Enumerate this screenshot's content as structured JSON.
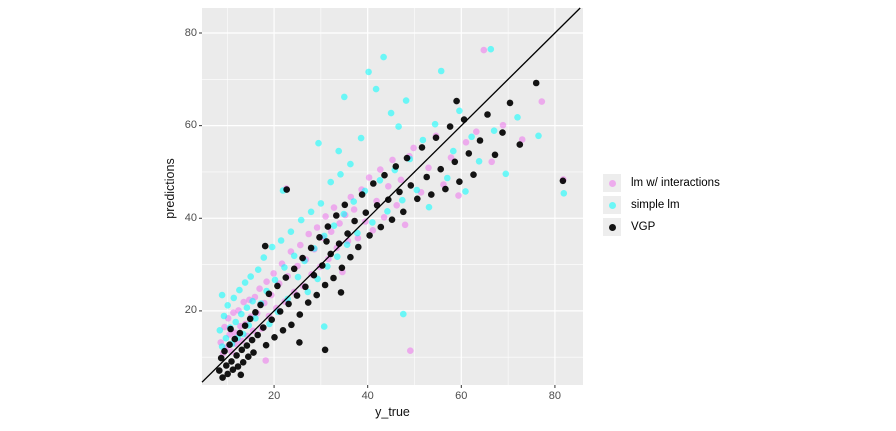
{
  "figure": {
    "background": "#ffffff",
    "panel_bg": "#ebebeb",
    "grid_major_color": "#ffffff",
    "grid_minor_color": "#ffffff",
    "tick_mark_color": "#333333",
    "tick_label_color": "#4d4d4d",
    "axis_title_color": "#111111",
    "legend_key_bg": "#ededed"
  },
  "chart_data": {
    "type": "scatter",
    "title": "",
    "xlabel": "y_true",
    "ylabel": "predictions",
    "xlim": [
      4.6,
      86.0
    ],
    "ylim": [
      4.0,
      85.4
    ],
    "x_ticks": [
      20,
      40,
      60,
      80
    ],
    "y_ticks": [
      20,
      40,
      60,
      80
    ],
    "x_tick_labels": [
      "20",
      "40",
      "60",
      "80"
    ],
    "y_tick_labels": [
      "20",
      "40",
      "60",
      "80"
    ],
    "x_minor_ticks": [
      10,
      30,
      50,
      70
    ],
    "y_minor_ticks": [
      10,
      30,
      50,
      70
    ],
    "grid": true,
    "legend_position": "right",
    "identity_line": {
      "slope": 1,
      "intercept": 0,
      "color": "#000000",
      "width": 1.3
    },
    "series": [
      {
        "name": "lm w/ interactions",
        "color": "rgba(238,130,238,0.62)",
        "points": [
          [
            8.6,
            13.2
          ],
          [
            9.1,
            10.8
          ],
          [
            9.4,
            16.5
          ],
          [
            9.8,
            12.1
          ],
          [
            10.2,
            18.4
          ],
          [
            10.5,
            14.9
          ],
          [
            10.9,
            11.2
          ],
          [
            11.3,
            19.6
          ],
          [
            11.6,
            15.3
          ],
          [
            12.0,
            12.8
          ],
          [
            12.4,
            20.1
          ],
          [
            12.8,
            16.7
          ],
          [
            13.1,
            13.5
          ],
          [
            13.5,
            21.9
          ],
          [
            13.9,
            17.2
          ],
          [
            14.3,
            14.6
          ],
          [
            14.7,
            22.4
          ],
          [
            15.1,
            18.8
          ],
          [
            15.5,
            15.7
          ],
          [
            15.9,
            23.0
          ],
          [
            18.2,
            9.3
          ],
          [
            16.4,
            19.5
          ],
          [
            16.9,
            24.8
          ],
          [
            17.4,
            16.2
          ],
          [
            17.9,
            21.7
          ],
          [
            18.4,
            26.3
          ],
          [
            18.9,
            18.9
          ],
          [
            19.4,
            23.4
          ],
          [
            19.9,
            28.1
          ],
          [
            20.5,
            20.6
          ],
          [
            21.1,
            25.9
          ],
          [
            21.7,
            30.2
          ],
          [
            22.3,
            22.0
          ],
          [
            22.9,
            27.5
          ],
          [
            23.6,
            32.8
          ],
          [
            24.3,
            24.1
          ],
          [
            22.6,
            46.4
          ],
          [
            25.0,
            29.7
          ],
          [
            25.6,
            34.2
          ],
          [
            26.2,
            25.4
          ],
          [
            26.8,
            31.1
          ],
          [
            27.4,
            36.6
          ],
          [
            28.0,
            27.9
          ],
          [
            28.6,
            33.3
          ],
          [
            29.2,
            38.0
          ],
          [
            29.8,
            29.5
          ],
          [
            30.4,
            35.8
          ],
          [
            31.0,
            40.4
          ],
          [
            31.6,
            31.2
          ],
          [
            32.2,
            37.1
          ],
          [
            32.8,
            42.3
          ],
          [
            33.4,
            33.6
          ],
          [
            34.0,
            38.9
          ],
          [
            34.6,
            28.4
          ],
          [
            35.2,
            40.7
          ],
          [
            35.8,
            35.1
          ],
          [
            36.4,
            44.6
          ],
          [
            37.1,
            41.9
          ],
          [
            37.9,
            35.7
          ],
          [
            38.7,
            46.2
          ],
          [
            39.5,
            39.3
          ],
          [
            40.3,
            48.8
          ],
          [
            41.1,
            37.4
          ],
          [
            41.9,
            43.7
          ],
          [
            42.7,
            50.5
          ],
          [
            43.5,
            40.2
          ],
          [
            44.4,
            46.9
          ],
          [
            45.3,
            52.6
          ],
          [
            46.2,
            42.8
          ],
          [
            47.1,
            48.3
          ],
          [
            48.0,
            38.6
          ],
          [
            48.9,
            53.4
          ],
          [
            49.1,
            11.4
          ],
          [
            49.8,
            55.2
          ],
          [
            51.4,
            45.6
          ],
          [
            53.0,
            50.9
          ],
          [
            54.6,
            57.8
          ],
          [
            56.2,
            47.3
          ],
          [
            57.8,
            53.1
          ],
          [
            59.4,
            44.9
          ],
          [
            61.0,
            56.4
          ],
          [
            63.2,
            58.7
          ],
          [
            64.8,
            76.3
          ],
          [
            66.5,
            52.2
          ],
          [
            68.9,
            60.1
          ],
          [
            73.0,
            57.0
          ],
          [
            77.2,
            65.2
          ],
          [
            81.8,
            48.4
          ]
        ]
      },
      {
        "name": "simple lm",
        "color": "rgba(0,255,255,0.55)",
        "points": [
          [
            8.4,
            15.8
          ],
          [
            8.9,
            12.3
          ],
          [
            8.9,
            23.4
          ],
          [
            9.3,
            18.9
          ],
          [
            9.7,
            14.1
          ],
          [
            10.1,
            21.2
          ],
          [
            10.6,
            16.4
          ],
          [
            11.0,
            12.9
          ],
          [
            11.4,
            22.8
          ],
          [
            11.8,
            17.6
          ],
          [
            12.2,
            14.2
          ],
          [
            12.6,
            24.5
          ],
          [
            13.0,
            19.3
          ],
          [
            13.4,
            15.0
          ],
          [
            13.8,
            26.1
          ],
          [
            14.2,
            20.7
          ],
          [
            14.6,
            16.9
          ],
          [
            15.0,
            27.4
          ],
          [
            15.4,
            22.1
          ],
          [
            16.0,
            18.4
          ],
          [
            16.6,
            28.9
          ],
          [
            17.2,
            21.6
          ],
          [
            17.8,
            31.5
          ],
          [
            18.4,
            24.3
          ],
          [
            19.0,
            17.2
          ],
          [
            19.6,
            33.8
          ],
          [
            20.2,
            26.7
          ],
          [
            20.8,
            19.8
          ],
          [
            21.5,
            35.2
          ],
          [
            21.9,
            46.0
          ],
          [
            22.2,
            29.4
          ],
          [
            22.9,
            22.6
          ],
          [
            23.6,
            37.1
          ],
          [
            24.3,
            31.9
          ],
          [
            25.1,
            27.3
          ],
          [
            25.8,
            39.6
          ],
          [
            26.5,
            30.8
          ],
          [
            27.2,
            24.1
          ],
          [
            27.9,
            41.4
          ],
          [
            28.6,
            33.5
          ],
          [
            29.3,
            26.9
          ],
          [
            29.5,
            56.2
          ],
          [
            30.0,
            43.2
          ],
          [
            30.7,
            16.6
          ],
          [
            30.7,
            36.2
          ],
          [
            31.4,
            29.6
          ],
          [
            32.1,
            47.8
          ],
          [
            32.8,
            38.4
          ],
          [
            33.5,
            31.7
          ],
          [
            33.8,
            54.5
          ],
          [
            34.2,
            49.5
          ],
          [
            34.9,
            40.9
          ],
          [
            35.0,
            66.2
          ],
          [
            35.6,
            34.3
          ],
          [
            36.3,
            51.7
          ],
          [
            37.0,
            43.6
          ],
          [
            37.8,
            36.8
          ],
          [
            38.6,
            57.3
          ],
          [
            39.4,
            45.9
          ],
          [
            40.2,
            71.6
          ],
          [
            41.0,
            39.1
          ],
          [
            41.8,
            67.9
          ],
          [
            42.6,
            48.2
          ],
          [
            43.4,
            74.8
          ],
          [
            44.2,
            41.5
          ],
          [
            45.0,
            62.7
          ],
          [
            45.8,
            50.4
          ],
          [
            46.6,
            59.8
          ],
          [
            47.4,
            43.9
          ],
          [
            47.6,
            19.3
          ],
          [
            48.2,
            65.4
          ],
          [
            49.0,
            52.8
          ],
          [
            50.5,
            46.1
          ],
          [
            51.8,
            56.9
          ],
          [
            53.1,
            42.4
          ],
          [
            54.4,
            60.3
          ],
          [
            55.7,
            71.8
          ],
          [
            57.0,
            48.7
          ],
          [
            58.3,
            54.5
          ],
          [
            59.6,
            63.2
          ],
          [
            60.9,
            45.8
          ],
          [
            62.2,
            57.6
          ],
          [
            63.8,
            52.3
          ],
          [
            66.3,
            76.5
          ],
          [
            67.0,
            58.9
          ],
          [
            69.5,
            49.6
          ],
          [
            72.0,
            61.8
          ],
          [
            76.5,
            57.8
          ],
          [
            81.9,
            45.4
          ]
        ]
      },
      {
        "name": "VGP",
        "color": "rgba(0,0,0,0.92)",
        "points": [
          [
            8.3,
            7.1
          ],
          [
            8.7,
            9.8
          ],
          [
            9.0,
            5.6
          ],
          [
            9.4,
            11.3
          ],
          [
            9.8,
            8.2
          ],
          [
            10.1,
            6.4
          ],
          [
            10.5,
            12.7
          ],
          [
            10.7,
            16.1
          ],
          [
            10.9,
            9.1
          ],
          [
            11.2,
            7.3
          ],
          [
            11.6,
            13.9
          ],
          [
            12.0,
            10.4
          ],
          [
            12.3,
            8.0
          ],
          [
            12.7,
            15.2
          ],
          [
            12.9,
            6.2
          ],
          [
            13.1,
            11.6
          ],
          [
            13.4,
            8.9
          ],
          [
            13.8,
            16.8
          ],
          [
            14.2,
            12.5
          ],
          [
            14.5,
            10.1
          ],
          [
            14.9,
            18.3
          ],
          [
            15.3,
            13.7
          ],
          [
            15.6,
            11.0
          ],
          [
            16.0,
            19.7
          ],
          [
            16.5,
            14.8
          ],
          [
            17.1,
            21.3
          ],
          [
            17.7,
            16.4
          ],
          [
            18.1,
            34.0
          ],
          [
            18.3,
            12.6
          ],
          [
            18.9,
            23.7
          ],
          [
            19.5,
            18.1
          ],
          [
            20.1,
            14.3
          ],
          [
            20.7,
            25.4
          ],
          [
            21.3,
            19.9
          ],
          [
            21.9,
            15.8
          ],
          [
            22.5,
            27.2
          ],
          [
            22.7,
            46.2
          ],
          [
            23.1,
            21.5
          ],
          [
            23.7,
            17.0
          ],
          [
            24.3,
            29.1
          ],
          [
            24.9,
            23.3
          ],
          [
            25.4,
            13.2
          ],
          [
            25.5,
            19.2
          ],
          [
            26.1,
            31.4
          ],
          [
            26.7,
            25.2
          ],
          [
            27.3,
            21.8
          ],
          [
            27.9,
            33.6
          ],
          [
            28.5,
            27.7
          ],
          [
            29.1,
            23.4
          ],
          [
            29.7,
            35.9
          ],
          [
            30.3,
            29.8
          ],
          [
            30.9,
            11.6
          ],
          [
            30.9,
            25.6
          ],
          [
            31.2,
            35.0
          ],
          [
            31.5,
            38.2
          ],
          [
            32.1,
            32.3
          ],
          [
            32.7,
            27.1
          ],
          [
            33.3,
            40.6
          ],
          [
            33.9,
            34.5
          ],
          [
            34.3,
            24.0
          ],
          [
            34.5,
            29.3
          ],
          [
            35.1,
            42.9
          ],
          [
            35.7,
            36.7
          ],
          [
            36.3,
            31.6
          ],
          [
            37.2,
            39.4
          ],
          [
            38.0,
            33.8
          ],
          [
            38.8,
            45.1
          ],
          [
            39.6,
            41.2
          ],
          [
            40.4,
            36.3
          ],
          [
            41.2,
            47.5
          ],
          [
            42.0,
            42.8
          ],
          [
            42.8,
            38.1
          ],
          [
            43.6,
            49.3
          ],
          [
            44.4,
            44.0
          ],
          [
            45.2,
            39.7
          ],
          [
            46.0,
            51.2
          ],
          [
            46.8,
            45.7
          ],
          [
            47.6,
            41.4
          ],
          [
            48.4,
            53.0
          ],
          [
            49.2,
            47.1
          ],
          [
            50.6,
            44.2
          ],
          [
            51.6,
            55.3
          ],
          [
            52.6,
            48.9
          ],
          [
            53.6,
            45.1
          ],
          [
            54.6,
            57.4
          ],
          [
            55.6,
            50.6
          ],
          [
            56.6,
            46.3
          ],
          [
            57.6,
            59.8
          ],
          [
            58.6,
            52.2
          ],
          [
            59.0,
            65.3
          ],
          [
            59.6,
            47.9
          ],
          [
            60.6,
            61.3
          ],
          [
            61.6,
            54.0
          ],
          [
            62.6,
            49.4
          ],
          [
            64.0,
            56.8
          ],
          [
            65.6,
            62.4
          ],
          [
            67.2,
            53.7
          ],
          [
            68.8,
            58.5
          ],
          [
            70.4,
            64.9
          ],
          [
            72.5,
            55.9
          ],
          [
            76.0,
            69.2
          ],
          [
            81.7,
            48.1
          ]
        ]
      }
    ]
  }
}
